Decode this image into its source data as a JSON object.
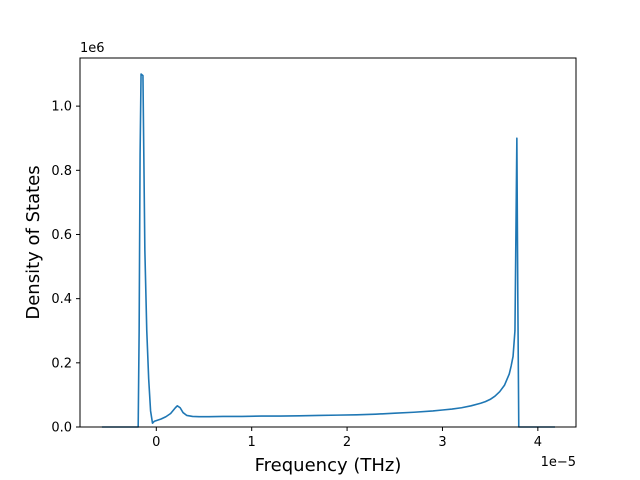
{
  "chart_data": {
    "type": "line",
    "xlabel": "Frequency (THz)",
    "ylabel": "Density of States",
    "x_offset_label": "1e−5",
    "y_offset_label": "1e6",
    "xlim": [
      -0.8,
      4.4
    ],
    "ylim": [
      0,
      1.15
    ],
    "x_ticks": [
      0,
      1,
      2,
      3,
      4
    ],
    "x_tick_labels": [
      "0",
      "1",
      "2",
      "3",
      "4"
    ],
    "y_ticks": [
      0.0,
      0.2,
      0.4,
      0.6,
      0.8,
      1.0
    ],
    "y_tick_labels": [
      "0.0",
      "0.2",
      "0.4",
      "0.6",
      "0.8",
      "1.0"
    ],
    "grid": false,
    "colors": {
      "line": "#1f77b4",
      "axes": "#000000"
    },
    "series": [
      {
        "x": [
          -0.57,
          -0.3,
          -0.19,
          -0.18,
          -0.17,
          -0.16,
          -0.14,
          -0.12,
          -0.1,
          -0.08,
          -0.06,
          -0.04,
          -0.02,
          0.0,
          0.05,
          0.1,
          0.15,
          0.2,
          0.22,
          0.25,
          0.28,
          0.32,
          0.38,
          0.45,
          0.55,
          0.7,
          0.9,
          1.1,
          1.3,
          1.5,
          1.7,
          1.9,
          2.1,
          2.3,
          2.5,
          2.7,
          2.9,
          3.0,
          3.1,
          3.2,
          3.3,
          3.4,
          3.45,
          3.5,
          3.55,
          3.6,
          3.65,
          3.7,
          3.72,
          3.74,
          3.76,
          3.77,
          3.78,
          3.79,
          3.8,
          4.0,
          4.18
        ],
        "y": [
          0.0,
          0.0,
          0.0,
          0.3,
          0.85,
          1.1,
          1.095,
          0.55,
          0.3,
          0.15,
          0.05,
          0.012,
          0.018,
          0.02,
          0.025,
          0.032,
          0.042,
          0.06,
          0.066,
          0.06,
          0.045,
          0.036,
          0.033,
          0.032,
          0.032,
          0.033,
          0.033,
          0.034,
          0.034,
          0.035,
          0.036,
          0.037,
          0.038,
          0.04,
          0.043,
          0.046,
          0.05,
          0.053,
          0.056,
          0.06,
          0.066,
          0.074,
          0.079,
          0.086,
          0.096,
          0.11,
          0.13,
          0.165,
          0.19,
          0.22,
          0.3,
          0.6,
          0.9,
          0.4,
          0.0,
          0.0,
          0.0
        ]
      }
    ]
  }
}
